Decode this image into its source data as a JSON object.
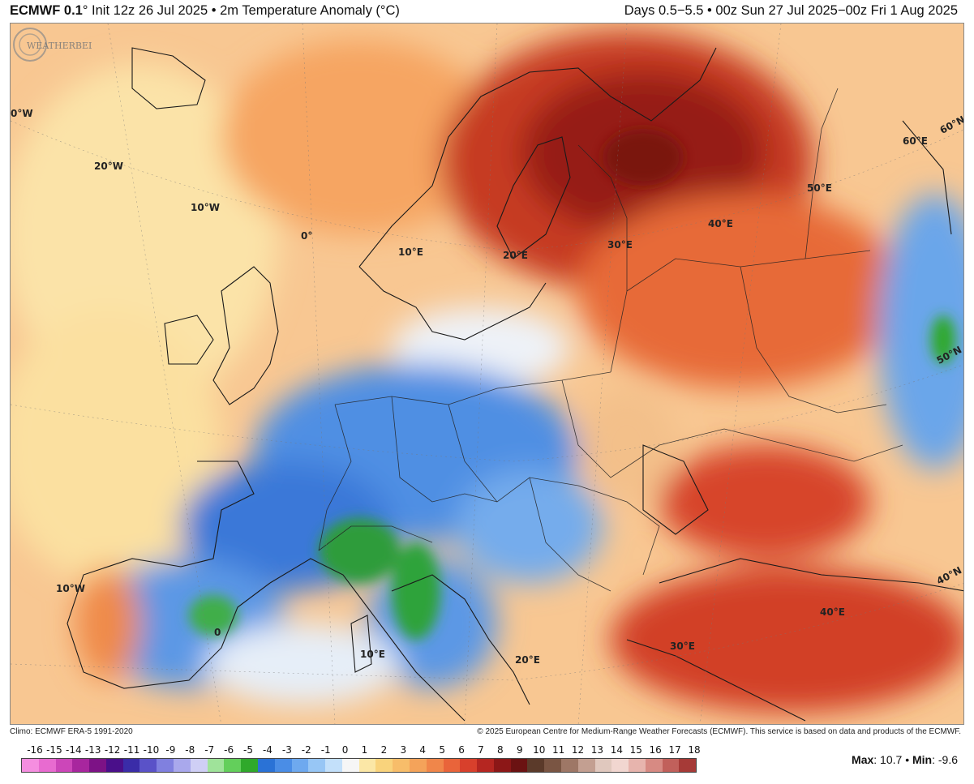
{
  "header": {
    "model": "ECMWF 0.1",
    "degree": "°",
    "init": "Init 12z 26 Jul 2025",
    "bullet": "•",
    "field": "2m Temperature Anomaly (°C)",
    "valid": "Days 0.5−5.5 • 00z Sun 27 Jul 2025−00z Fri 1 Aug 2025"
  },
  "map": {
    "coords": [
      {
        "id": "lon-30w",
        "text": "0°W"
      },
      {
        "id": "lon-20w",
        "text": "20°W"
      },
      {
        "id": "lon-10w-north",
        "text": "10°W"
      },
      {
        "id": "lon-0-north",
        "text": "0°"
      },
      {
        "id": "lon-10e-north",
        "text": "10°E"
      },
      {
        "id": "lon-20e-north",
        "text": "20°E"
      },
      {
        "id": "lon-30e-north",
        "text": "30°E"
      },
      {
        "id": "lon-40e-north",
        "text": "40°E"
      },
      {
        "id": "lon-50e",
        "text": "50°E"
      },
      {
        "id": "lon-60e",
        "text": "60°E"
      },
      {
        "id": "lat-60n",
        "text": "60°N"
      },
      {
        "id": "lat-50n",
        "text": "50°N"
      },
      {
        "id": "lat-40n",
        "text": "40°N"
      },
      {
        "id": "lon-10w-south",
        "text": "10°W"
      },
      {
        "id": "lon-0-south",
        "text": "0"
      },
      {
        "id": "lon-10e-south",
        "text": "10°E"
      },
      {
        "id": "lon-20e-south",
        "text": "20°E"
      },
      {
        "id": "lon-30e-south",
        "text": "30°E"
      },
      {
        "id": "lon-40e-south",
        "text": "40°E"
      }
    ]
  },
  "footer": {
    "climo": "Climo: ECMWF ERA-5 1991-2020",
    "copyright": "© 2025 European Centre for Medium-Range Weather Forecasts (ECMWF). This service is based on data and products of the ECMWF."
  },
  "logo": {
    "text": "WEATHERBELL"
  },
  "colorbar": {
    "ticks": [
      "-16",
      "-15",
      "-14",
      "-13",
      "-12",
      "-11",
      "-10",
      "-9",
      "-8",
      "-7",
      "-6",
      "-5",
      "-4",
      "-3",
      "-2",
      "-1",
      "0",
      "1",
      "2",
      "3",
      "4",
      "5",
      "6",
      "7",
      "8",
      "9",
      "10",
      "11",
      "12",
      "13",
      "14",
      "15",
      "16",
      "17",
      "18"
    ],
    "colors": [
      "#f58ee0",
      "#e86bd0",
      "#cc46b9",
      "#a8269e",
      "#7d1286",
      "#4a0f8a",
      "#3a2ca8",
      "#5a52c8",
      "#8080df",
      "#a9a8ec",
      "#cfcff5",
      "#9fe39a",
      "#63cf5b",
      "#2fa92b",
      "#2a72d6",
      "#4a8de6",
      "#6ea9ef",
      "#97c6f5",
      "#c3e0fa",
      "#f6f6f6",
      "#fbe7a6",
      "#f9d37c",
      "#f7bd6a",
      "#f4a35a",
      "#f0864a",
      "#e9643a",
      "#d8402c",
      "#b52621",
      "#8c1717",
      "#6b1212",
      "#5b3a2a",
      "#7a5543",
      "#9e7766",
      "#c39f91",
      "#e0c8be",
      "#f1d6d0",
      "#e7b4ad",
      "#d78a83",
      "#c1605b",
      "#a63a37"
    ]
  },
  "stats": {
    "max_label": "Max",
    "max_value": "10.7",
    "bullet": "•",
    "min_label": "Min",
    "min_value": "-9.6"
  }
}
